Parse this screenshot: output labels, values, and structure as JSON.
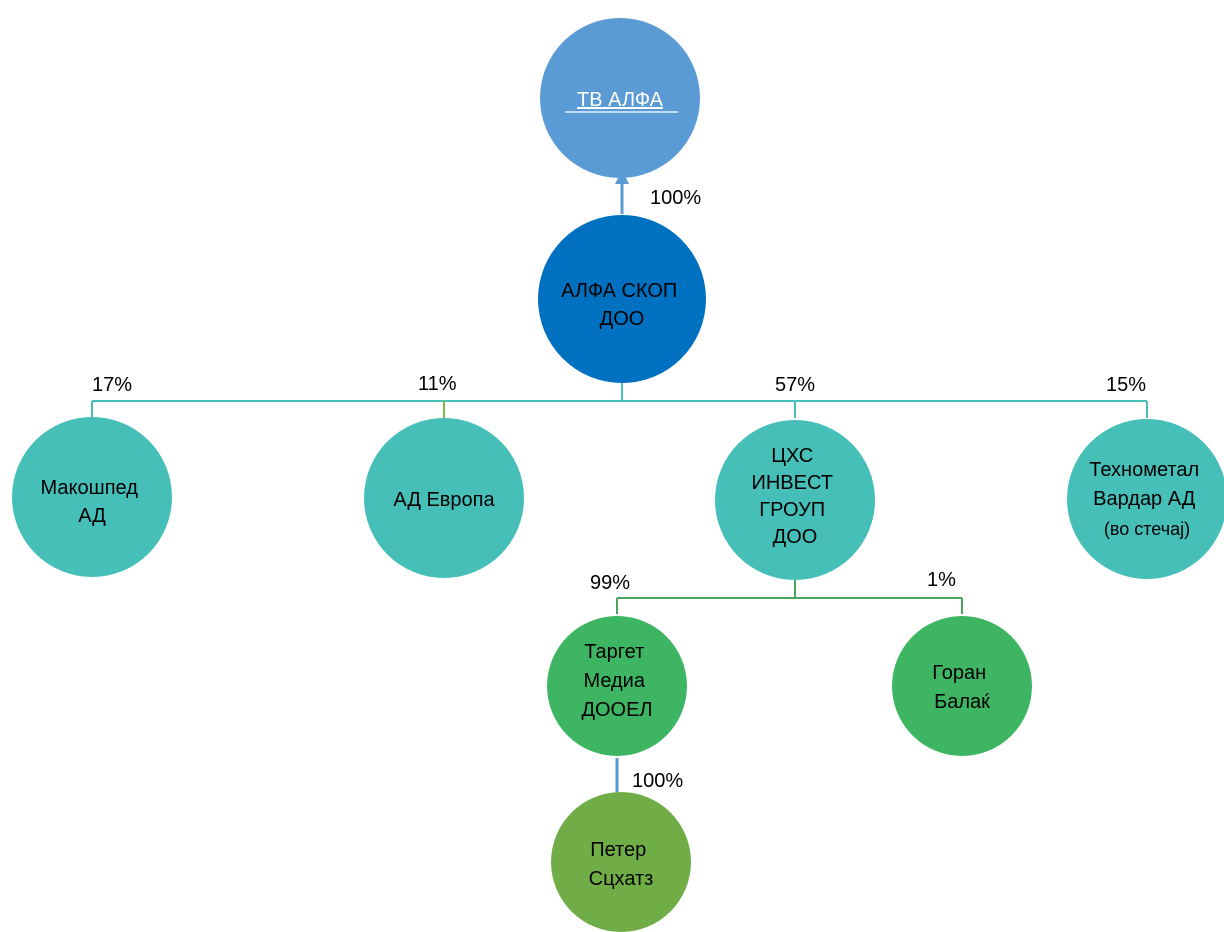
{
  "colors": {
    "tv_alfa": "#5b9bd5",
    "alfa_skop": "#0070c0",
    "teal": "#46bfb8",
    "green_mid": "#3eb562",
    "green_dark": "#70ad47",
    "line_blue": "#5b9bd5",
    "line_teal": "#46bfb8",
    "line_green_light": "#7dbb4a",
    "line_green": "#4aa35e",
    "text_white": "#ffffff"
  },
  "nodes": {
    "tv_alfa": {
      "lines": [
        "ТВ АЛФА"
      ]
    },
    "alfa_skop": {
      "lines": [
        "АЛФА СКОП",
        "ДОО"
      ]
    },
    "makoshped": {
      "lines": [
        "Макошпед",
        "АД"
      ]
    },
    "ad_evropa": {
      "lines": [
        "АД Европа"
      ]
    },
    "chs_invest": {
      "lines": [
        "ЦХС",
        "ИНВЕСТ",
        "ГРОУП",
        "ДОО"
      ]
    },
    "tehnometal": {
      "lines": [
        "Технометал",
        "Вардар АД",
        "(во стечај)"
      ]
    },
    "target_media": {
      "lines": [
        "Таргет",
        "Медиа",
        "ДООЕЛ"
      ]
    },
    "goran_balak": {
      "lines": [
        "Горан",
        "Балаќ"
      ]
    },
    "peter_schatz": {
      "lines": [
        "Петер",
        "Сцхатз"
      ]
    }
  },
  "edges": {
    "alfa_to_tv": "100%",
    "makoshped": "17%",
    "ad_evropa": "11%",
    "chs_invest": "57%",
    "tehnometal": "15%",
    "target_media": "99%",
    "goran_balak": "1%",
    "peter_schatz": "100%"
  }
}
